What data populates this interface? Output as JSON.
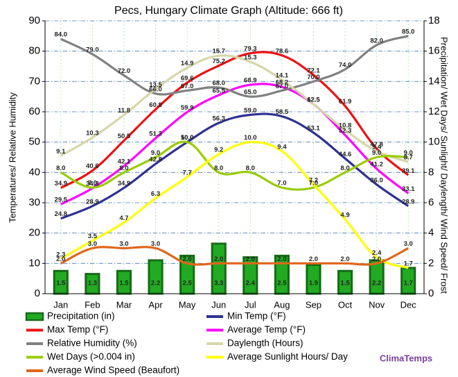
{
  "chart_data": {
    "type": "combo",
    "title": "Pecs, Hungary Climate Graph (Altitude: 666 ft)",
    "y_label": "Temperatures/ Relative Humidity",
    "y2_label": "Precipitation/ Wet Days/ Sunlight/ Daylength/ Wind Speed/ Frost",
    "source": "ClimaTemps",
    "categories": [
      "Jan",
      "Feb",
      "Mar",
      "Apr",
      "May",
      "Jun",
      "Jul",
      "Aug",
      "Sep",
      "Oct",
      "Nov",
      "Dec"
    ],
    "ylim": [
      0,
      90
    ],
    "yticks": [
      0,
      10,
      20,
      30,
      40,
      50,
      60,
      70,
      80,
      90
    ],
    "y2lim": [
      0,
      18
    ],
    "y2ticks": [
      0,
      2,
      4,
      6,
      8,
      10,
      12,
      14,
      16,
      18
    ],
    "grid": true,
    "series": [
      {
        "name": "Precipitation (in)",
        "type": "bar",
        "axis": "y2",
        "color": "#22aa22",
        "values": [
          1.5,
          1.3,
          1.5,
          2.2,
          2.5,
          3.3,
          2.4,
          2.5,
          1.9,
          1.5,
          2.2,
          1.7
        ],
        "value_labels": [
          "1.5",
          "1.3",
          "1.5",
          "2.2",
          "2.5",
          "3.3",
          "2.4",
          "2.5",
          "1.9",
          "1.5",
          "2.2",
          "1.7"
        ]
      },
      {
        "name": "Min Temp (°F)",
        "type": "line",
        "color": "#2e3192",
        "values": [
          24.8,
          28.9,
          34.9,
          42.8,
          50,
          56.3,
          59,
          58.5,
          53.1,
          44.6,
          36,
          28.9
        ],
        "value_labels": [
          "24.8",
          "28.9",
          "34.9",
          "42.8",
          "50.0",
          "56.3",
          "59.0",
          "58.5",
          "53.1",
          "44.6",
          "36.0",
          "28.9"
        ]
      },
      {
        "name": "Max Temp (°F)",
        "type": "line",
        "color": "#ee1111",
        "values": [
          34.9,
          40.6,
          50.5,
          60.8,
          69.6,
          75.2,
          79.3,
          78.6,
          72.1,
          61.9,
          47.8,
          39.1
        ],
        "value_labels": [
          "34.9",
          "40.6",
          "50.5",
          "60.8",
          "69.6",
          "75.2",
          "79.3",
          "78.6",
          "72.1",
          "61.9",
          "47.8",
          "39.1"
        ]
      },
      {
        "name": "Average Temp (°F)",
        "type": "line",
        "color": "#ff00ff",
        "values": [
          29.5,
          34.8,
          42.1,
          51.3,
          59.9,
          65.5,
          68.9,
          68.2,
          62.5,
          52.3,
          41.2,
          33.1
        ],
        "value_labels": [
          "29.5",
          "34.8",
          "42.1",
          "51.3",
          "59.9",
          "65.5",
          "68.9",
          "68.2",
          "62.5",
          "52.3",
          "41.2",
          "33.1"
        ]
      },
      {
        "name": "Relative Humidity (%)",
        "type": "line",
        "color": "#808080",
        "values": [
          84,
          79,
          72,
          66,
          67,
          68,
          65,
          67,
          70,
          74,
          82,
          85
        ],
        "value_labels": [
          "84.0",
          "79.0",
          "72.0",
          "66.0",
          "67.0",
          "68.0",
          "65.0",
          "67.0",
          "70.0",
          "74.0",
          "82.0",
          "85.0"
        ]
      },
      {
        "name": "Daylength (Hours)",
        "type": "line",
        "axis": "y2",
        "color": "#d6d6a8",
        "values": [
          9.1,
          10.3,
          11.8,
          13.5,
          14.9,
          15.7,
          15.3,
          14.1,
          12.5,
          10.8,
          9.4,
          8.7
        ],
        "value_labels": [
          "9.1",
          "10.3",
          "11.8",
          "13.5",
          "14.9",
          "15.7",
          "15.3",
          "14.1",
          "12.5",
          "10.8",
          "9.4",
          "8.7"
        ]
      },
      {
        "name": "Wet Days (>0.004 in)",
        "type": "line",
        "axis": "y2",
        "color": "#99cc00",
        "values": [
          8,
          7,
          8,
          9,
          10,
          8,
          8,
          7,
          7,
          8,
          9,
          9
        ],
        "value_labels": [
          "8.0",
          "7.0",
          "8.0",
          "9.0",
          "10.0",
          "8.0",
          "8.0",
          "7.0",
          "7.0",
          "8.0",
          "9.0",
          "9.0"
        ]
      },
      {
        "name": "Average Sunlight Hours/ Day",
        "type": "line",
        "axis": "y2",
        "color": "#ffff00",
        "values": [
          2.3,
          3.5,
          4.7,
          6.3,
          7.7,
          9.2,
          10,
          9.4,
          7.2,
          4.9,
          2.4,
          1.7
        ],
        "value_labels": [
          "2.3",
          "3.5",
          "4.7",
          "6.3",
          "7.7",
          "9.2",
          "10.0",
          "9.4",
          "7.2",
          "4.9",
          "2.4",
          "1.7"
        ]
      },
      {
        "name": "Average Wind Speed (Beaufort)",
        "type": "line",
        "axis": "y2",
        "color": "#e0661a",
        "values": [
          2,
          3,
          3,
          3,
          2,
          2,
          2,
          2,
          2,
          2,
          2,
          3
        ],
        "value_labels": [
          "2.0",
          "3.0",
          "3.0",
          "3.0",
          "2.0",
          "2.0",
          "2.0",
          "2.0",
          "2.0",
          "2.0",
          "2.0",
          "3.0"
        ]
      }
    ]
  }
}
